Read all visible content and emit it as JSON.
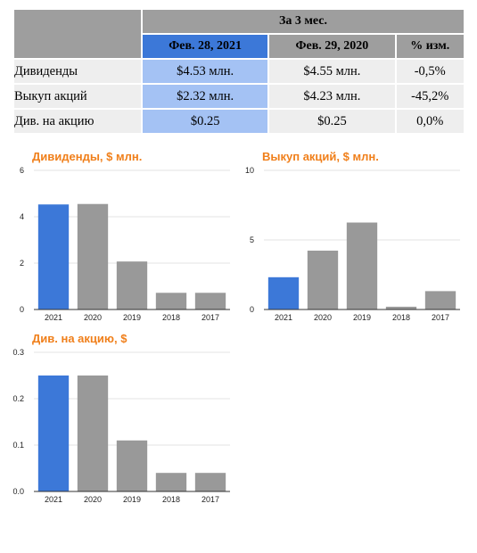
{
  "table": {
    "group_header": "За 3 мес.",
    "columns": [
      "Фев. 28, 2021",
      "Фев. 29, 2020",
      "% изм."
    ],
    "rows": [
      {
        "label": "Дивиденды",
        "values": [
          "$4.53 млн.",
          "$4.55 млн.",
          "-0,5%"
        ]
      },
      {
        "label": "Выкуп акций",
        "values": [
          "$2.32 млн.",
          "$4.23 млн.",
          "-45,2%"
        ]
      },
      {
        "label": "Див. на акцию",
        "values": [
          "$0.25",
          "$0.25",
          "0,0%"
        ]
      }
    ]
  },
  "colors": {
    "highlight_bar": "#3c78d8",
    "bar": "#999999",
    "title": "#f07f1a",
    "header_accent": "#3c78d8",
    "cell_accent": "#a4c2f4"
  },
  "chart_data": [
    {
      "type": "bar",
      "title": "Дивиденды, $ млн.",
      "categories": [
        "2021",
        "2020",
        "2019",
        "2018",
        "2017"
      ],
      "values": [
        4.53,
        4.55,
        2.07,
        0.72,
        0.72
      ],
      "ylim": [
        0,
        6
      ],
      "yticks": [
        "0",
        "2",
        "4",
        "6"
      ],
      "highlight_index": 0
    },
    {
      "type": "bar",
      "title": "Выкуп акций, $ млн.",
      "categories": [
        "2021",
        "2020",
        "2019",
        "2018",
        "2017"
      ],
      "values": [
        2.32,
        4.23,
        6.25,
        0.2,
        1.32
      ],
      "ylim": [
        0,
        10
      ],
      "yticks": [
        "0",
        "5",
        "10"
      ],
      "highlight_index": 0
    },
    {
      "type": "bar",
      "title": "Див. на акцию, $",
      "categories": [
        "2021",
        "2020",
        "2019",
        "2018",
        "2017"
      ],
      "values": [
        0.25,
        0.25,
        0.11,
        0.04,
        0.04
      ],
      "ylim": [
        0,
        0.3
      ],
      "yticks": [
        "0.0",
        "0.1",
        "0.2",
        "0.3"
      ],
      "highlight_index": 0
    }
  ]
}
